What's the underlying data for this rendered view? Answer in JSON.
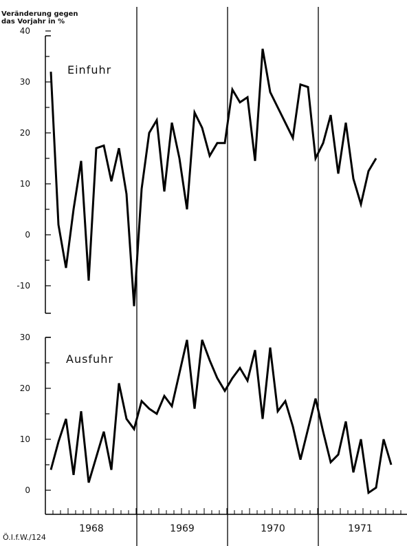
{
  "chart_data": {
    "type": "line",
    "header_line1": "Veränderung gegen",
    "header_line2": "das Vorjahr in %",
    "source": "Ö.I.f.W./124",
    "years": [
      "1968",
      "1969",
      "1970",
      "1971"
    ],
    "charts": [
      {
        "series_name": "Einfuhr",
        "ylim": [
          -15,
          40
        ],
        "yticks": [
          40,
          30,
          20,
          10,
          0,
          -10
        ],
        "values": [
          32,
          2,
          -6.5,
          5,
          14.5,
          -9,
          17,
          17.5,
          10.5,
          17,
          8,
          -14,
          9,
          20,
          22.5,
          8.5,
          22,
          15,
          5,
          24,
          21,
          15.5,
          18,
          18,
          28.5,
          26,
          27,
          14.5,
          36.5,
          28,
          25,
          22,
          19,
          29.5,
          29,
          15,
          18,
          23.5,
          12,
          22,
          11,
          6,
          12.5,
          15
        ]
      },
      {
        "series_name": "Ausfuhr",
        "ylim": [
          -5,
          30
        ],
        "yticks": [
          30,
          20,
          10,
          0
        ],
        "values": [
          4,
          9.5,
          14,
          3,
          15.5,
          1.5,
          6.5,
          11.5,
          4,
          21,
          14,
          12,
          17.5,
          16,
          15,
          18.5,
          16.5,
          23,
          29.5,
          16,
          29.5,
          25.5,
          22,
          19.5,
          22,
          24,
          21.5,
          27.5,
          14,
          28,
          15.5,
          17.5,
          12.5,
          6,
          12,
          18,
          11.5,
          5.5,
          7,
          13.5,
          3.5,
          10,
          -0.5,
          0.5,
          10,
          5
        ]
      }
    ]
  }
}
